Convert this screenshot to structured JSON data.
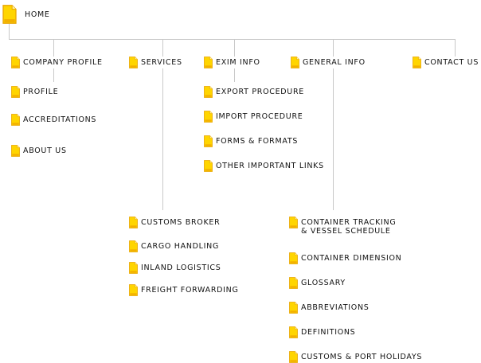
{
  "home": "HOME",
  "sections": {
    "company_profile": {
      "label": "COMPANY PROFILE",
      "items": [
        "PROFILE",
        "ACCREDITATIONS",
        "ABOUT US"
      ]
    },
    "services": {
      "label": "SERVICES",
      "items": [
        "CUSTOMS BROKER",
        "CARGO HANDLING",
        "INLAND LOGISTICS",
        "FREIGHT FORWARDING"
      ]
    },
    "exim_info": {
      "label": "EXIM INFO",
      "items": [
        "EXPORT PROCEDURE",
        "IMPORT PROCEDURE",
        "FORMS & FORMATS",
        "OTHER IMPORTANT LINKS"
      ]
    },
    "general_info": {
      "label": "GENERAL INFO",
      "items": [
        "CONTAINER TRACKING\n& VESSEL SCHEDULE",
        "CONTAINER DIMENSION",
        "GLOSSARY",
        "ABBREVIATIONS",
        "DEFINITIONS",
        "CUSTOMS & PORT HOLIDAYS"
      ]
    },
    "contact_us": {
      "label": "CONTACT US"
    }
  },
  "colors": {
    "folder_fill": "#ffd500",
    "folder_shade": "#f2a800",
    "connector": "#c8c8c8"
  }
}
